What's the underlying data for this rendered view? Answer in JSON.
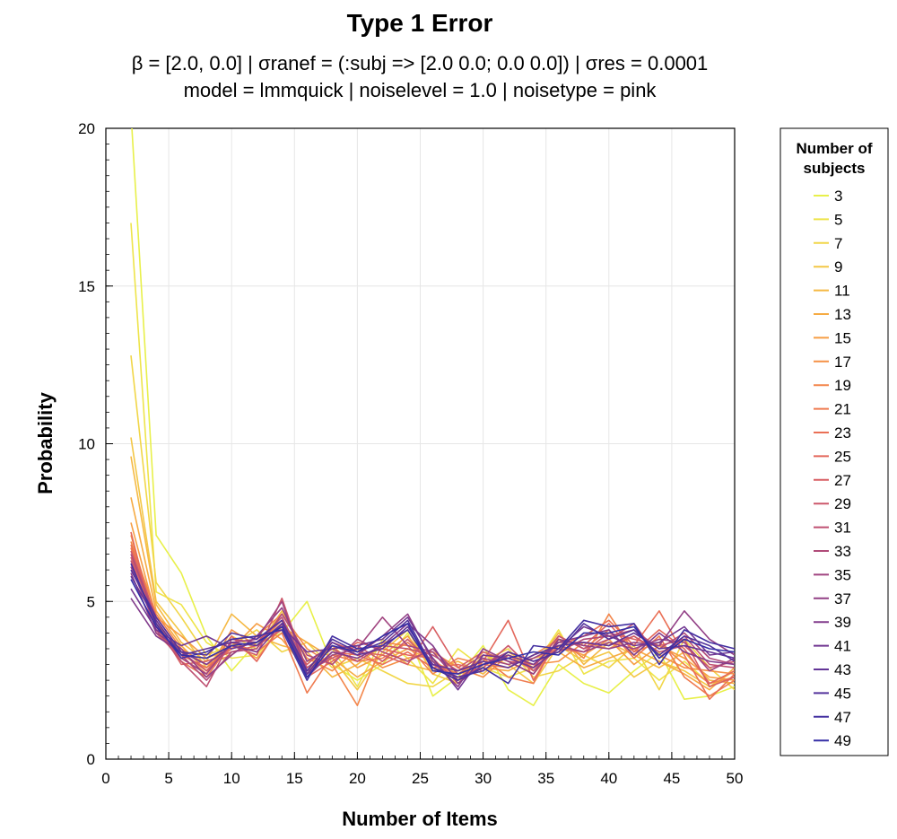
{
  "chart_data": {
    "type": "line",
    "title": "Type 1 Error",
    "subtitle_lines": [
      "β = [2.0, 0.0]   |   σranef = (:subj => [2.0 0.0; 0.0 0.0])   |   σres = 0.0001",
      "model = lmmquick   |   noiselevel = 1.0   |   noisetype = pink"
    ],
    "xlabel": "Number of Items",
    "ylabel": "Probability",
    "xlim": [
      0,
      50
    ],
    "ylim": [
      0,
      20
    ],
    "xticks": [
      0,
      5,
      10,
      15,
      20,
      25,
      30,
      35,
      40,
      45,
      50
    ],
    "yticks": [
      0,
      5,
      10,
      15,
      20
    ],
    "grid": true,
    "legend": {
      "title": "Number of subjects",
      "position": "right"
    },
    "x": [
      2,
      4,
      6,
      8,
      10,
      12,
      14,
      16,
      18,
      20,
      22,
      24,
      26,
      28,
      30,
      32,
      34,
      36,
      38,
      40,
      42,
      44,
      46,
      48,
      50
    ],
    "series": [
      {
        "name": "3",
        "color": "#e8f04a",
        "values": [
          20.5,
          7.1,
          5.9,
          3.9,
          2.8,
          3.7,
          4.0,
          5.0,
          3.0,
          2.5,
          3.0,
          4.0,
          2.0,
          2.6,
          3.6,
          2.2,
          1.7,
          3.0,
          2.4,
          2.1,
          2.8,
          3.4,
          1.9,
          2.0,
          2.3
        ]
      },
      {
        "name": "5",
        "color": "#eee44a",
        "values": [
          17.0,
          5.3,
          4.9,
          3.7,
          3.2,
          3.3,
          4.2,
          2.9,
          3.5,
          2.3,
          3.8,
          3.2,
          2.4,
          3.5,
          2.9,
          2.6,
          2.9,
          4.1,
          2.7,
          3.1,
          3.2,
          2.5,
          3.1,
          2.4,
          2.6
        ]
      },
      {
        "name": "7",
        "color": "#f1d648",
        "values": [
          12.8,
          5.6,
          4.5,
          3.3,
          3.6,
          4.1,
          3.4,
          3.7,
          2.9,
          3.2,
          2.8,
          2.4,
          2.3,
          2.8,
          3.1,
          3.5,
          2.6,
          2.8,
          3.3,
          2.9,
          3.6,
          2.2,
          3.8,
          2.9,
          2.2
        ]
      },
      {
        "name": "9",
        "color": "#f3c746",
        "values": [
          10.2,
          5.0,
          4.0,
          2.9,
          3.9,
          3.5,
          4.7,
          3.1,
          3.2,
          2.2,
          3.4,
          4.1,
          2.7,
          2.4,
          3.3,
          3.0,
          2.4,
          3.6,
          3.1,
          3.4,
          2.6,
          3.1,
          2.8,
          2.3,
          2.8
        ]
      },
      {
        "name": "11",
        "color": "#f5b944",
        "values": [
          9.6,
          4.9,
          3.7,
          3.1,
          4.6,
          3.9,
          3.6,
          3.4,
          2.6,
          3.0,
          3.6,
          3.0,
          2.8,
          3.1,
          2.7,
          3.4,
          2.9,
          4.0,
          3.0,
          3.7,
          3.3,
          2.9,
          3.4,
          2.5,
          2.4
        ]
      },
      {
        "name": "13",
        "color": "#f6ab43",
        "values": [
          8.3,
          4.7,
          3.6,
          2.8,
          3.7,
          3.2,
          4.2,
          3.7,
          3.2,
          2.6,
          3.1,
          3.5,
          3.1,
          2.7,
          2.9,
          2.8,
          3.2,
          3.4,
          2.9,
          3.2,
          3.5,
          3.1,
          2.7,
          2.2,
          2.9
        ]
      },
      {
        "name": "15",
        "color": "#f69e44",
        "values": [
          7.5,
          4.5,
          3.9,
          3.2,
          3.5,
          4.3,
          3.8,
          2.8,
          3.6,
          2.9,
          3.3,
          3.9,
          2.9,
          2.5,
          3.4,
          3.1,
          2.7,
          3.6,
          3.3,
          3.8,
          3.0,
          3.6,
          3.2,
          2.6,
          2.5
        ]
      },
      {
        "name": "17",
        "color": "#f59147",
        "values": [
          7.1,
          4.3,
          3.4,
          2.7,
          4.1,
          3.6,
          4.4,
          3.2,
          2.8,
          3.5,
          2.9,
          3.2,
          3.4,
          2.9,
          2.6,
          3.3,
          3.0,
          3.1,
          3.7,
          3.5,
          3.9,
          3.3,
          2.9,
          2.8,
          2.7
        ]
      },
      {
        "name": "19",
        "color": "#f3864b",
        "values": [
          6.9,
          4.6,
          3.5,
          3.0,
          3.3,
          3.9,
          4.6,
          3.5,
          3.0,
          1.7,
          3.7,
          3.6,
          2.7,
          3.2,
          3.0,
          2.9,
          3.3,
          3.8,
          3.2,
          4.6,
          3.4,
          3.7,
          3.0,
          2.4,
          2.6
        ]
      },
      {
        "name": "21",
        "color": "#ef7b50",
        "values": [
          6.7,
          4.2,
          3.1,
          2.6,
          3.7,
          3.4,
          4.0,
          2.1,
          3.3,
          3.1,
          3.2,
          3.7,
          3.0,
          2.7,
          3.2,
          2.6,
          2.4,
          3.9,
          3.5,
          4.1,
          3.2,
          3.9,
          2.6,
          2.0,
          2.5
        ]
      },
      {
        "name": "23",
        "color": "#ea7056",
        "values": [
          6.8,
          4.4,
          3.3,
          2.9,
          3.5,
          3.7,
          4.4,
          2.7,
          3.4,
          3.3,
          3.0,
          3.4,
          2.9,
          3.0,
          2.8,
          3.3,
          2.8,
          3.6,
          3.9,
          4.4,
          3.6,
          4.7,
          3.3,
          1.9,
          2.7
        ]
      },
      {
        "name": "25",
        "color": "#e3675b",
        "values": [
          7.2,
          4.0,
          3.2,
          2.7,
          3.9,
          3.1,
          4.3,
          2.6,
          3.1,
          3.7,
          3.5,
          3.3,
          3.2,
          2.4,
          3.1,
          4.4,
          2.5,
          3.8,
          3.6,
          4.3,
          3.4,
          4.1,
          3.5,
          2.4,
          2.8
        ]
      },
      {
        "name": "27",
        "color": "#d85f63",
        "values": [
          6.4,
          4.3,
          3.0,
          3.1,
          3.4,
          3.6,
          4.1,
          3.0,
          3.7,
          3.4,
          3.3,
          3.0,
          4.2,
          2.9,
          3.4,
          3.1,
          3.0,
          3.5,
          3.4,
          4.0,
          3.8,
          3.6,
          3.8,
          2.3,
          2.6
        ]
      },
      {
        "name": "29",
        "color": "#cc586b",
        "values": [
          6.6,
          4.5,
          3.4,
          2.8,
          3.6,
          3.3,
          5.1,
          2.8,
          3.2,
          3.6,
          3.1,
          3.8,
          3.0,
          2.6,
          2.9,
          3.6,
          2.8,
          3.7,
          3.7,
          3.6,
          3.9,
          3.4,
          3.6,
          2.9,
          3.1
        ]
      },
      {
        "name": "31",
        "color": "#bf5172",
        "values": [
          6.3,
          4.1,
          3.1,
          2.3,
          3.8,
          3.7,
          4.5,
          2.9,
          3.5,
          3.1,
          3.6,
          3.5,
          3.3,
          2.8,
          3.3,
          3.2,
          2.9,
          3.9,
          3.5,
          3.8,
          4.3,
          3.2,
          3.9,
          3.0,
          2.9
        ]
      },
      {
        "name": "33",
        "color": "#b04b79",
        "values": [
          6.5,
          4.4,
          3.3,
          2.5,
          3.4,
          3.5,
          4.6,
          3.3,
          3.0,
          3.8,
          3.4,
          3.1,
          3.5,
          2.7,
          3.0,
          3.4,
          3.1,
          3.4,
          3.8,
          3.9,
          4.1,
          3.5,
          4.0,
          3.2,
          3.0
        ]
      },
      {
        "name": "35",
        "color": "#a14580",
        "values": [
          6.1,
          4.2,
          3.2,
          2.7,
          3.7,
          3.8,
          5.0,
          2.7,
          3.3,
          3.5,
          4.5,
          3.6,
          3.4,
          2.5,
          3.2,
          3.0,
          3.2,
          3.6,
          3.4,
          3.7,
          3.5,
          3.8,
          3.7,
          2.8,
          3.2
        ]
      },
      {
        "name": "37",
        "color": "#924086",
        "values": [
          5.9,
          4.0,
          3.5,
          2.6,
          3.3,
          3.9,
          4.8,
          3.1,
          3.6,
          3.3,
          3.9,
          4.6,
          3.1,
          2.3,
          3.5,
          3.1,
          2.7,
          3.8,
          3.6,
          3.5,
          3.7,
          3.6,
          4.7,
          3.8,
          3.3
        ]
      },
      {
        "name": "39",
        "color": "#823c8c",
        "values": [
          5.1,
          3.9,
          3.4,
          3.0,
          3.6,
          3.4,
          4.3,
          2.6,
          3.4,
          3.2,
          3.6,
          4.3,
          3.6,
          2.4,
          3.0,
          3.3,
          3.0,
          3.7,
          3.9,
          4.1,
          3.3,
          4.0,
          3.4,
          3.1,
          3.0
        ]
      },
      {
        "name": "41",
        "color": "#723892",
        "values": [
          5.4,
          4.1,
          3.6,
          3.9,
          3.5,
          3.7,
          4.2,
          3.4,
          3.5,
          3.6,
          3.8,
          4.5,
          3.2,
          2.2,
          3.3,
          3.2,
          2.9,
          3.5,
          4.2,
          3.9,
          3.6,
          3.7,
          4.2,
          3.3,
          3.4
        ]
      },
      {
        "name": "43",
        "color": "#633597",
        "values": [
          5.8,
          4.4,
          3.3,
          3.5,
          3.7,
          3.6,
          4.3,
          2.7,
          3.7,
          3.3,
          3.5,
          4.2,
          3.0,
          2.8,
          3.1,
          2.9,
          3.3,
          3.6,
          3.7,
          3.6,
          4.0,
          3.5,
          3.6,
          3.4,
          3.2
        ]
      },
      {
        "name": "45",
        "color": "#53339c",
        "values": [
          6.0,
          4.5,
          3.4,
          3.3,
          4.0,
          3.8,
          4.4,
          2.8,
          3.8,
          3.4,
          3.7,
          4.4,
          2.9,
          2.6,
          2.8,
          3.4,
          3.1,
          3.4,
          4.3,
          3.8,
          4.1,
          3.3,
          3.9,
          3.6,
          3.1
        ]
      },
      {
        "name": "47",
        "color": "#4431a1",
        "values": [
          6.2,
          4.3,
          3.2,
          3.4,
          3.8,
          3.9,
          4.1,
          2.5,
          3.9,
          3.5,
          3.6,
          4.1,
          2.9,
          2.5,
          2.9,
          2.4,
          3.6,
          3.5,
          4.4,
          4.2,
          4.3,
          3.0,
          4.1,
          3.7,
          3.5
        ]
      },
      {
        "name": "49",
        "color": "#352fa6",
        "values": [
          5.7,
          4.2,
          3.3,
          3.2,
          3.6,
          3.7,
          4.2,
          2.6,
          3.6,
          3.4,
          3.9,
          4.3,
          2.8,
          2.7,
          3.0,
          3.2,
          3.4,
          3.3,
          4.0,
          4.0,
          4.2,
          3.2,
          3.8,
          3.5,
          3.4
        ]
      }
    ]
  }
}
